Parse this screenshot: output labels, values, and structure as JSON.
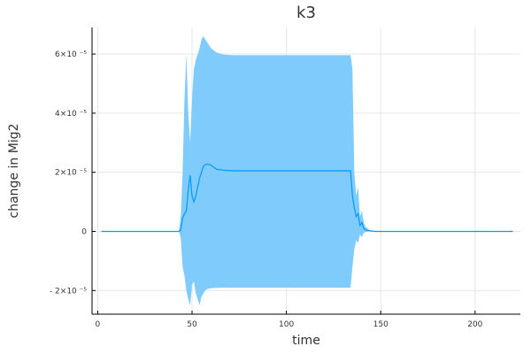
{
  "chart_data": {
    "type": "line",
    "title": "k3",
    "xlabel": "time",
    "ylabel": "change in Mig2",
    "xlim": [
      -3,
      224
    ],
    "ylim": [
      -2.8e-05,
      6.9e-05
    ],
    "xticks": [
      0,
      50,
      100,
      150,
      200
    ],
    "xtick_labels": [
      "0",
      "50",
      "100",
      "150",
      "200"
    ],
    "yticks": [
      -2e-05,
      0,
      2e-05,
      4e-05,
      6e-05
    ],
    "ytick_labels": [
      "- 2×10 ⁻⁵",
      "0",
      "2×10 ⁻⁵",
      "4×10 ⁻⁵",
      "6×10 ⁻⁵"
    ],
    "grid": true,
    "legend": false,
    "colors": {
      "line": "#009AFA",
      "band": "#7FCBFB"
    },
    "series": [
      {
        "x": [
          2,
          43,
          44,
          45,
          46,
          47,
          48,
          49,
          50,
          51,
          52,
          53,
          54,
          55,
          56,
          57,
          58,
          60,
          63,
          67,
          72,
          80,
          100,
          120,
          133,
          134,
          135,
          136,
          137,
          138,
          139,
          140,
          141,
          142,
          144,
          147,
          155,
          180,
          220
        ],
        "values": [
          0,
          0,
          5e-07,
          4.5e-06,
          6e-06,
          7e-06,
          1.4e-05,
          1.9e-05,
          1.2e-05,
          1e-05,
          1.2e-05,
          1.5e-05,
          1.8e-05,
          2e-05,
          2.2e-05,
          2.26e-05,
          2.28e-05,
          2.24e-05,
          2.1e-05,
          2.07e-05,
          2.05e-05,
          2.05e-05,
          2.05e-05,
          2.05e-05,
          2.05e-05,
          2.05e-05,
          1.2e-05,
          8e-06,
          5e-06,
          6e-06,
          2e-06,
          3e-06,
          1e-06,
          5e-07,
          2e-07,
          0,
          0,
          0,
          0
        ],
        "upper": [
          0,
          0,
          5e-06,
          2e-05,
          4.5e-05,
          6e-05,
          4e-05,
          3e-05,
          4.5e-05,
          5.5e-05,
          5.8e-05,
          6e-05,
          6.2e-05,
          6.5e-05,
          6.6e-05,
          6.5e-05,
          6.4e-05,
          6.2e-05,
          6.05e-05,
          5.98e-05,
          5.96e-05,
          5.96e-05,
          5.96e-05,
          5.96e-05,
          5.96e-05,
          5.96e-05,
          5.5e-05,
          2e-05,
          1.2e-05,
          1.5e-05,
          5e-06,
          7e-06,
          3e-06,
          1.5e-06,
          5e-07,
          0,
          0,
          0,
          0
        ],
        "lower": [
          0,
          0,
          -2e-06,
          -1.2e-05,
          -1.5e-05,
          -2e-05,
          -2.3e-05,
          -2.5e-05,
          -1.8e-05,
          -1.7e-05,
          -2.1e-05,
          -2.3e-05,
          -2.5e-05,
          -2.2e-05,
          -2.1e-05,
          -2e-05,
          -1.95e-05,
          -1.92e-05,
          -1.91e-05,
          -1.9e-05,
          -1.9e-05,
          -1.9e-05,
          -1.9e-05,
          -1.9e-05,
          -1.9e-05,
          -1.9e-05,
          -1.2e-05,
          -6e-06,
          -3e-06,
          -4e-06,
          -1e-06,
          -2e-06,
          -5e-07,
          -2e-07,
          0,
          0,
          0,
          0,
          0
        ]
      }
    ]
  }
}
